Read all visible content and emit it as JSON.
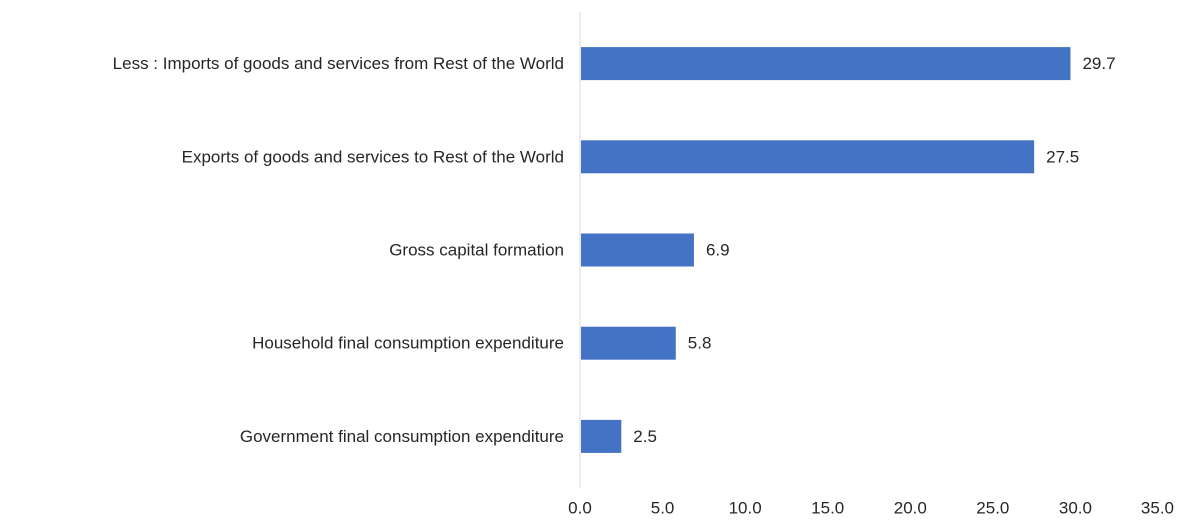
{
  "chart_data": {
    "type": "bar",
    "orientation": "horizontal",
    "categories": [
      "Less : Imports of goods and services from Rest of the World",
      "Exports of goods and services to Rest of the World",
      "Gross capital formation",
      "Household final consumption expenditure",
      "Government final consumption expenditure"
    ],
    "values": [
      29.7,
      27.5,
      6.9,
      5.8,
      2.5
    ],
    "data_labels": [
      "29.7",
      "27.5",
      "6.9",
      "5.8",
      "2.5"
    ],
    "xlim": [
      0,
      35
    ],
    "x_ticks": [
      "0.0",
      "5.0",
      "10.0",
      "15.0",
      "20.0",
      "25.0",
      "30.0",
      "35.0"
    ],
    "x_tick_values": [
      0,
      5,
      10,
      15,
      20,
      25,
      30,
      35
    ],
    "grid": false,
    "legend": "none",
    "bar_color": "#4472C4",
    "axis_color": "#D9D9D9",
    "text_color": "#262626"
  }
}
